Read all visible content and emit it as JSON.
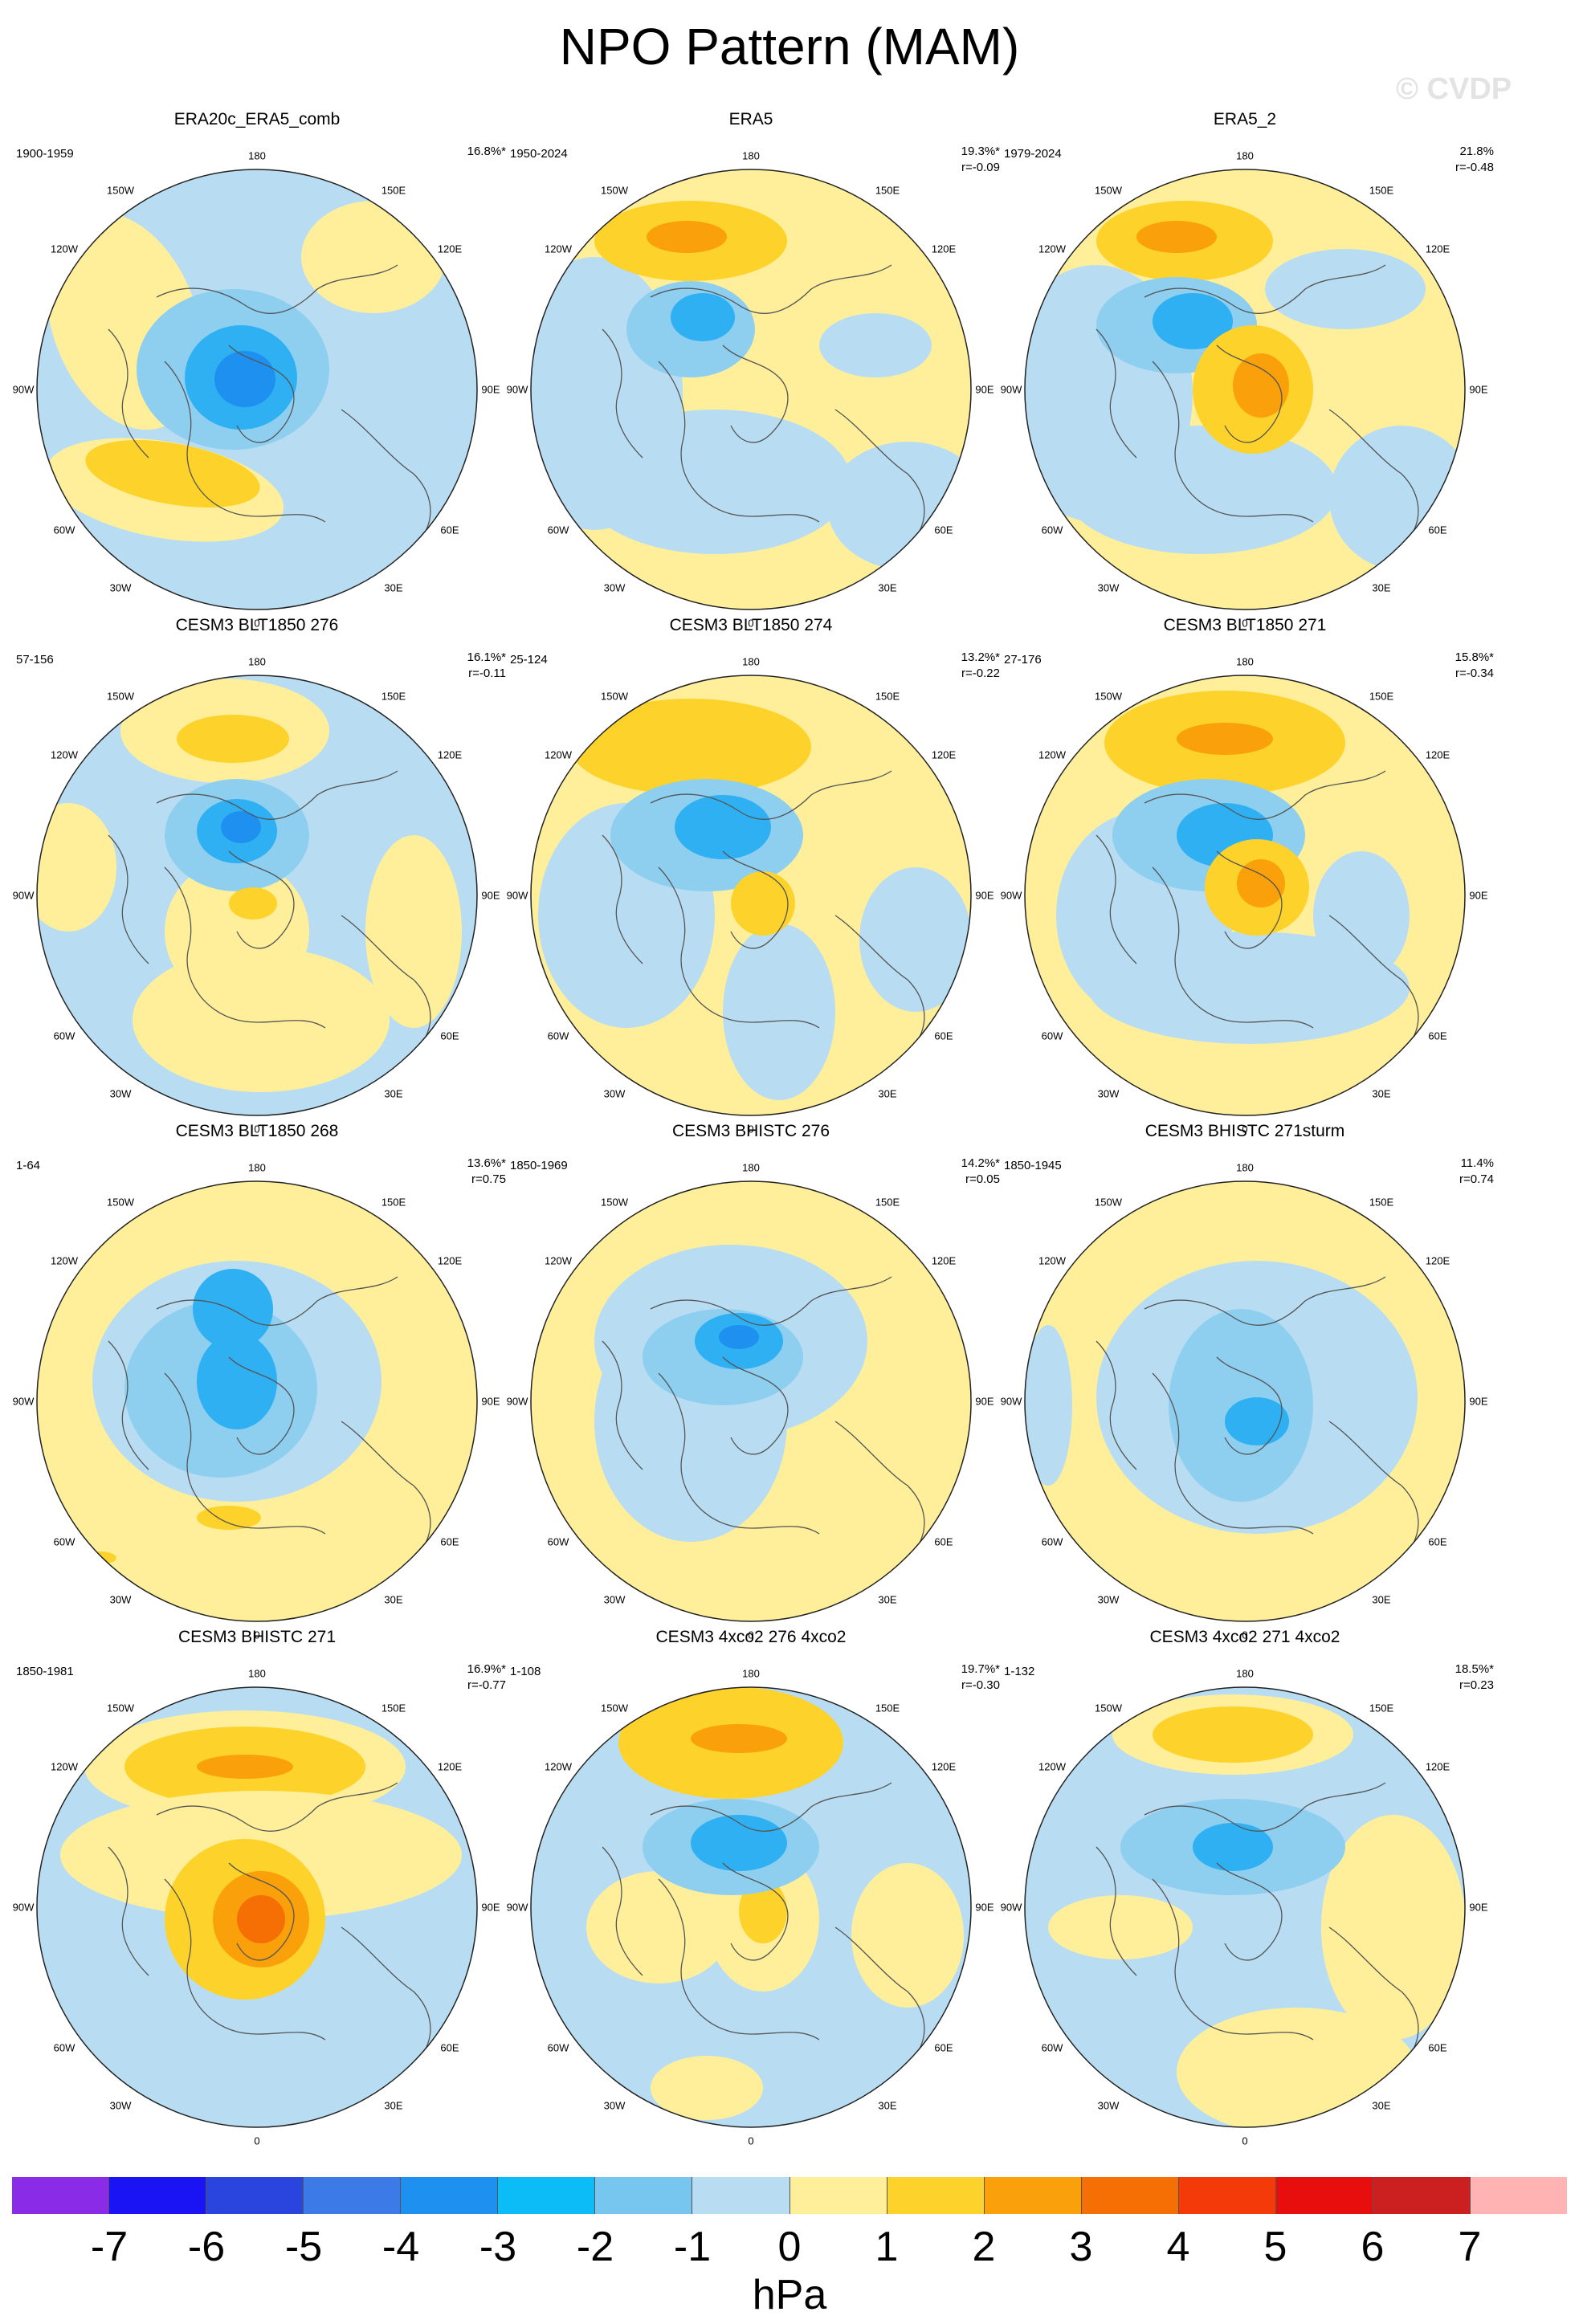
{
  "title": "NPO Pattern (MAM)",
  "watermark": "© CVDP",
  "colors": {
    "ocean": "#b8ddf2",
    "neg1": "#8ecff0",
    "neg2": "#2fb0f2",
    "neg3": "#1e90f0",
    "pos1": "#ffef9a",
    "pos2": "#fdd22b",
    "pos3": "#f9a00a",
    "pos4": "#f56f05",
    "coast": "#555555"
  },
  "lon_labels": [
    "180",
    "150E",
    "120E",
    "90E",
    "60E",
    "30E",
    "0",
    "30W",
    "60W",
    "90W",
    "120W",
    "150W"
  ],
  "panels": [
    {
      "title": "ERA20c_ERA5_comb",
      "period": "1900-1959",
      "pct": "16.8%*",
      "corr": ""
    },
    {
      "title": "ERA5",
      "period": "1950-2024",
      "pct": "19.3%*",
      "corr": "r=-0.09"
    },
    {
      "title": "ERA5_2",
      "period": "1979-2024",
      "pct": "21.8%",
      "corr": "r=-0.48"
    },
    {
      "title": "CESM3 BLT1850 276",
      "period": "57-156",
      "pct": "16.1%*",
      "corr": "r=-0.11"
    },
    {
      "title": "CESM3 BLT1850 274",
      "period": "25-124",
      "pct": "13.2%*",
      "corr": "r=-0.22"
    },
    {
      "title": "CESM3 BLT1850 271",
      "period": "27-176",
      "pct": "15.8%*",
      "corr": "r=-0.34"
    },
    {
      "title": "CESM3 BLT1850 268",
      "period": "1-64",
      "pct": "13.6%*",
      "corr": "r=0.75"
    },
    {
      "title": "CESM3 BHISTC 276",
      "period": "1850-1969",
      "pct": "14.2%*",
      "corr": "r=0.05"
    },
    {
      "title": "CESM3 BHISTC 271sturm",
      "period": "1850-1945",
      "pct": "11.4%",
      "corr": "r=0.74"
    },
    {
      "title": "CESM3 BHISTC 271",
      "period": "1850-1981",
      "pct": "16.9%*",
      "corr": "r=-0.77"
    },
    {
      "title": "CESM3 4xco2 276 4xco2",
      "period": "1-108",
      "pct": "19.7%*",
      "corr": "r=-0.30"
    },
    {
      "title": "CESM3 4xco2 271 4xco2",
      "period": "1-132",
      "pct": "18.5%*",
      "corr": "r=0.23"
    }
  ],
  "colorbar": {
    "colors": [
      "#8a2be8",
      "#1a14f5",
      "#2a45dd",
      "#3c7ae8",
      "#1e90f0",
      "#0bbcf7",
      "#77c6f0",
      "#b8ddf2",
      "#ffef9a",
      "#fdd22b",
      "#f9a00a",
      "#f56f05",
      "#f53a0a",
      "#e80e0e",
      "#cc1f1f",
      "#ffb3b3"
    ],
    "ticks": [
      "-7",
      "-6",
      "-5",
      "-4",
      "-3",
      "-2",
      "-1",
      "0",
      "1",
      "2",
      "3",
      "4",
      "5",
      "6",
      "7"
    ],
    "units": "hPa"
  }
}
